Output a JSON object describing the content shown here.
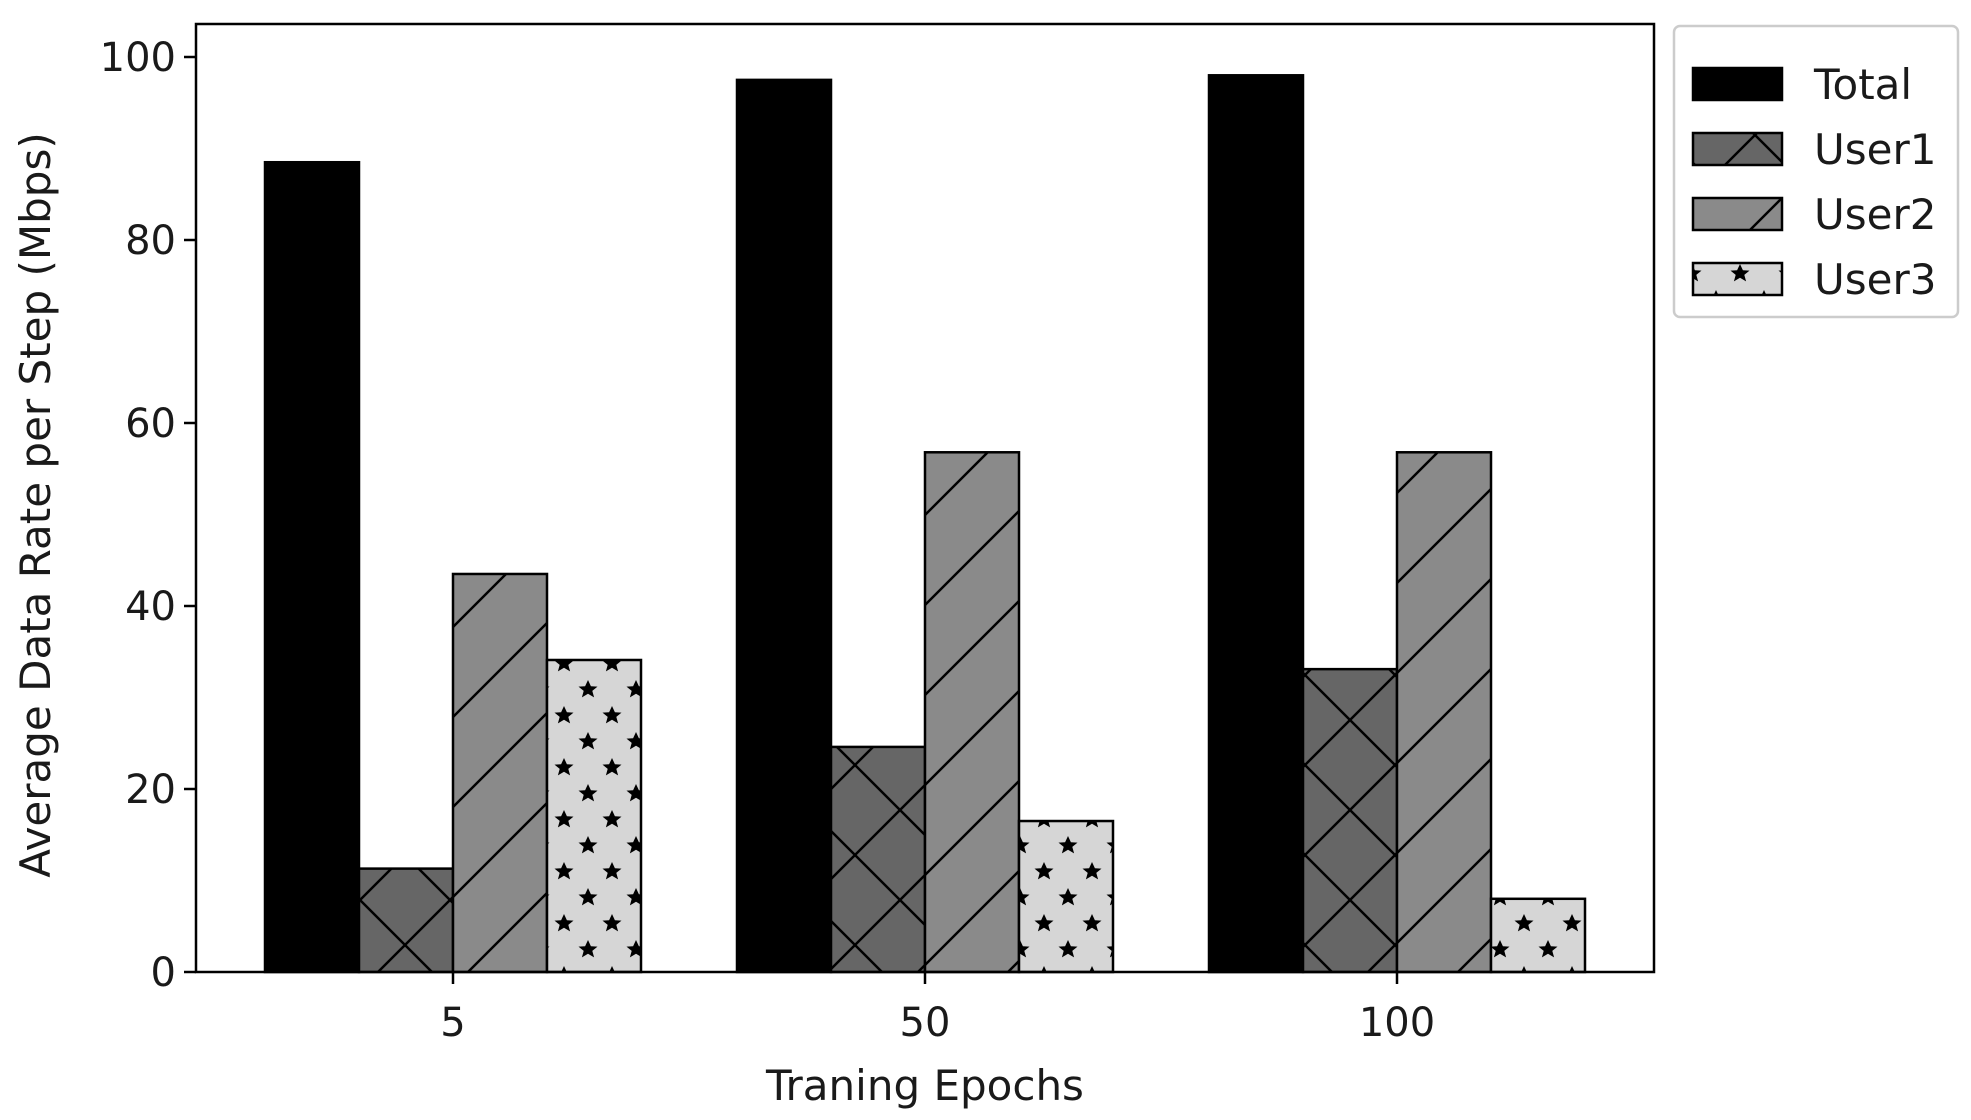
{
  "chart_data": {
    "type": "bar",
    "title": "",
    "xlabel": "Traning Epochs",
    "ylabel": "Average Data Rate per Step (Mbps)",
    "categories": [
      "5",
      "50",
      "100"
    ],
    "ylim": [
      0,
      100
    ],
    "yticks": [
      0,
      20,
      40,
      60,
      80,
      100
    ],
    "grid": false,
    "legend_position": "outside-top-right",
    "series": [
      {
        "name": "Total",
        "values": [
          88.5,
          97.5,
          98.0
        ],
        "color": "#000000",
        "hatch": "none"
      },
      {
        "name": "User1",
        "values": [
          11.3,
          24.6,
          33.1
        ],
        "color": "#666666",
        "hatch": "x"
      },
      {
        "name": "User2",
        "values": [
          43.5,
          56.8,
          56.8
        ],
        "color": "#8a8a8a",
        "hatch": "/"
      },
      {
        "name": "User3",
        "values": [
          34.1,
          16.5,
          8.0
        ],
        "color": "#d6d6d6",
        "hatch": "star"
      }
    ]
  }
}
